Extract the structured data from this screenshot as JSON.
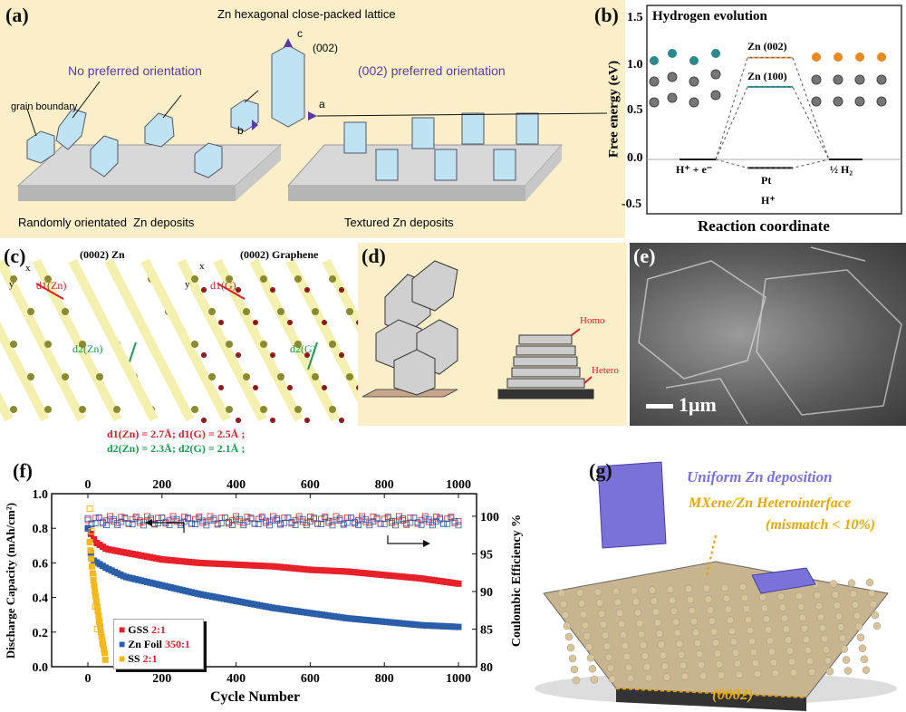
{
  "panel_a": {
    "label": "(a)",
    "lattice_title": "Zn hexagonal close-packed lattice",
    "axis_c": "c",
    "plane": "(002)",
    "axis_a": "a",
    "axis_b": "b",
    "left_title": "No preferred orientation",
    "right_title": "(002) preferred orientation",
    "grain_boundary": "grain boundary",
    "left_caption": "Randomly orientated  Zn deposits",
    "right_caption": "Textured Zn deposits",
    "bg_color": "#fbefc9",
    "accent_color": "#5a3aa0"
  },
  "panel_b": {
    "label": "(b)",
    "title": "Hydrogen evolution",
    "ylabel": "Free energy (eV)",
    "xlabel": "Reaction coordinate",
    "yticks": [
      "1.5",
      "1.0",
      "0.5",
      "0.0",
      "-0.5"
    ],
    "zn002": "Zn (002)",
    "zn100": "Zn (100)",
    "start_state": "H⁺ + e⁻",
    "pt": "Pt",
    "end_state": "½ H₂",
    "intermediate": "H⁺",
    "levels": {
      "zn002": 1.08,
      "zn100": 0.77,
      "pt": -0.09,
      "start": 0.0,
      "end": 0.0
    },
    "colors": {
      "zn002": "#e8a060",
      "zn100": "#2a9a9a"
    }
  },
  "panel_c": {
    "label": "(c)",
    "zn_title": "(0002) Zn",
    "graphene_title": "(0002) Graphene",
    "axis_x": "x",
    "axis_y": "y",
    "d1_zn": "d1(Zn)",
    "d2_zn": "d2(Zn)",
    "d1_g": "d1(G)",
    "d2_g": "d2(G)",
    "summary_line1": "d1(Zn) = 2.7Å; d1(G) = 2.5Å ;",
    "summary_line2": "d2(Zn) = 2.3Å; d2(G) = 2.1Å ;"
  },
  "panel_d": {
    "label": "(d)",
    "homo": "Homo",
    "hetero": "Hetero"
  },
  "panel_e": {
    "label": "(e)",
    "scale_bar": "1μm"
  },
  "panel_g": {
    "label": "(g)",
    "uniform": "Uniform Zn deposition",
    "interface": "MXene/Zn Heterointerface",
    "mismatch": "(mismatch < 10%)",
    "plane": "(0002)"
  },
  "chart_data": {
    "type": "scatter",
    "label": "(f)",
    "xlabel": "Cycle Number",
    "ylabel": "Discharge Capacity (mAh/cm²)",
    "ylabel_right": "Coulombic  Efficiency %",
    "xlim": [
      -100,
      1100
    ],
    "ylim": [
      0,
      1.0
    ],
    "ylim_right": [
      80,
      103
    ],
    "xticks": [
      "0",
      "200",
      "400",
      "600",
      "800",
      "1000"
    ],
    "yticks": [
      "0.0",
      "0.2",
      "0.4",
      "0.6",
      "0.8",
      "1.0"
    ],
    "yticks_right": [
      "80",
      "85",
      "90",
      "95",
      "100"
    ],
    "legend_position": "bottom-left",
    "series": [
      {
        "name": "GSS",
        "ratio": "2:1",
        "color": "#e8202a",
        "capacity": {
          "x": [
            0,
            20,
            50,
            100,
            200,
            300,
            400,
            500,
            600,
            700,
            800,
            900,
            1000
          ],
          "y": [
            0.8,
            0.72,
            0.68,
            0.66,
            0.62,
            0.6,
            0.59,
            0.58,
            0.56,
            0.55,
            0.53,
            0.51,
            0.48
          ]
        },
        "ce": 99.5
      },
      {
        "name": "Zn Foil",
        "ratio": "350:1",
        "color": "#2a5ea8",
        "capacity": {
          "x": [
            0,
            10,
            50,
            100,
            200,
            300,
            400,
            500,
            600,
            700,
            800,
            900,
            1000
          ],
          "y": [
            0.8,
            0.62,
            0.57,
            0.52,
            0.47,
            0.42,
            0.38,
            0.34,
            0.31,
            0.28,
            0.26,
            0.24,
            0.23
          ]
        },
        "ce": 99.3
      },
      {
        "name": "SS",
        "ratio": "2:1",
        "color": "#f2b81c",
        "capacity": {
          "x": [
            5,
            10,
            15,
            20,
            25,
            30,
            35,
            40,
            45,
            48
          ],
          "y": [
            0.72,
            0.6,
            0.5,
            0.42,
            0.35,
            0.28,
            0.2,
            0.14,
            0.08,
            0.02
          ]
        },
        "ce_points": {
          "x": [
            5,
            10,
            15,
            20,
            25,
            30,
            40
          ],
          "y": [
            101,
            98,
            92,
            88,
            85,
            86,
            83
          ]
        }
      }
    ],
    "arrows": [
      "left-axis",
      "right-axis"
    ]
  }
}
